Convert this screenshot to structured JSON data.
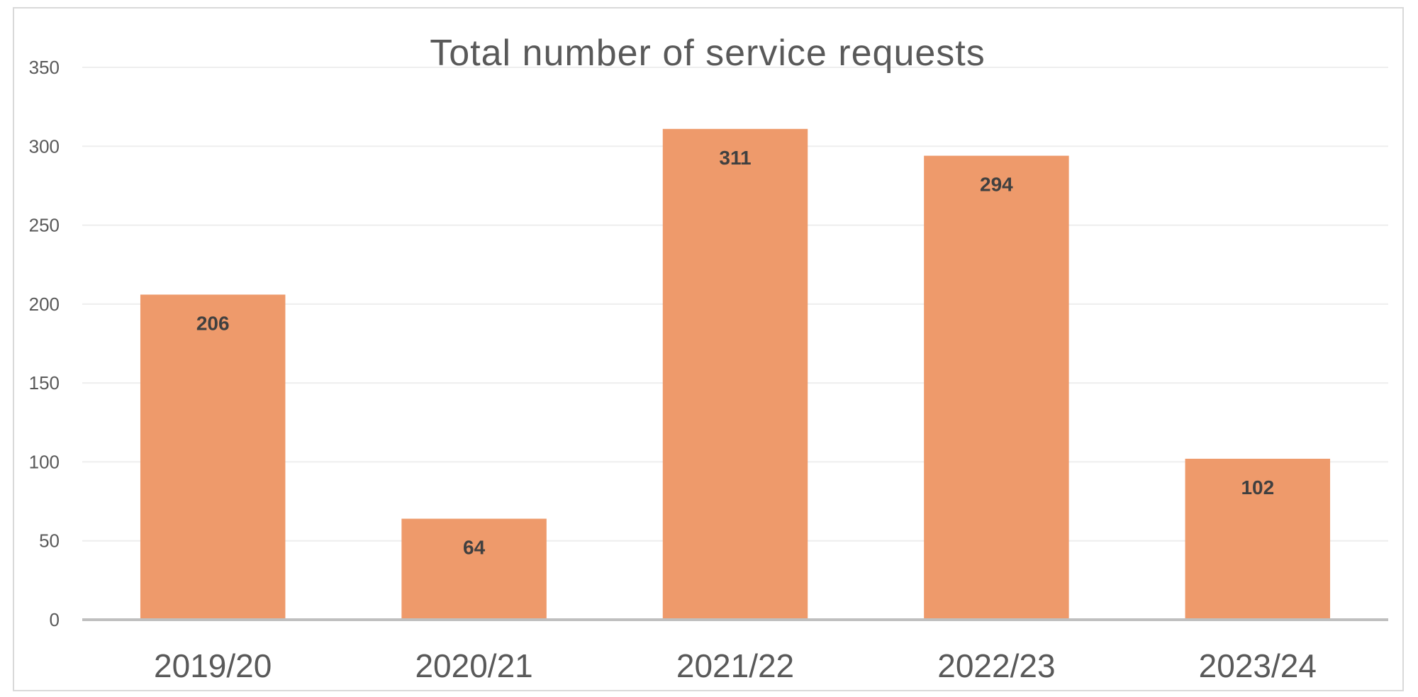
{
  "chart_data": {
    "type": "bar",
    "title": "Total number of service requests",
    "xlabel": "",
    "ylabel": "",
    "categories": [
      "2019/20",
      "2020/21",
      "2021/22",
      "2022/23",
      "2023/24"
    ],
    "series": [
      {
        "values": [
          206,
          64,
          311,
          294,
          102
        ]
      }
    ],
    "ylim": [
      0,
      350
    ],
    "yticks": [
      0,
      50,
      100,
      150,
      200,
      250,
      300,
      350
    ],
    "grid": true,
    "legend": "none",
    "data_labels": "inside-end",
    "colors": {
      "bar": "#ee9a6b",
      "grid": "#eeeeee",
      "axis": "#bfbfbf",
      "text": "#595959",
      "label_text": "#404040",
      "border": "#d9d9d9"
    }
  }
}
